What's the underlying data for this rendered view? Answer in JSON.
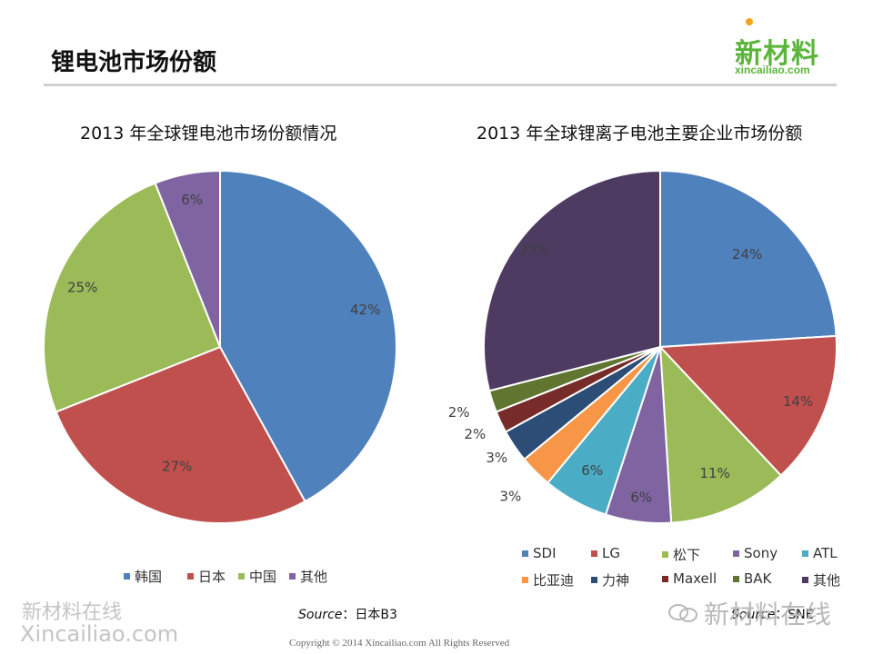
{
  "header": {
    "title": "锂电池市场份额",
    "logo_main": "新材料",
    "logo_sub": "xincailiao.com"
  },
  "chart_data": [
    {
      "type": "pie",
      "title": "2013 年全球锂电池市场份额情况",
      "categories": [
        "韩国",
        "日本",
        "中国",
        "其他"
      ],
      "values": [
        42,
        27,
        25,
        6
      ],
      "labels": [
        "42%",
        "27%",
        "25%",
        "6%"
      ],
      "colors": [
        "#4f81bd",
        "#c0504d",
        "#9bbb59",
        "#8064a2"
      ],
      "legend_position": "bottom"
    },
    {
      "type": "pie",
      "title": "2013 年全球锂离子电池主要企业市场份额",
      "categories": [
        "SDI",
        "LG",
        "松下",
        "Sony",
        "ATL",
        "比亚迪",
        "力神",
        "Maxell",
        "BAK",
        "其他"
      ],
      "values": [
        24,
        14,
        11,
        6,
        6,
        3,
        3,
        2,
        2,
        29
      ],
      "labels": [
        "24%",
        "14%",
        "11%",
        "6%",
        "6%",
        "3%",
        "3%",
        "2%",
        "2%",
        "29%"
      ],
      "colors": [
        "#4f81bd",
        "#c0504d",
        "#9bbb59",
        "#8064a2",
        "#4bacc6",
        "#f79646",
        "#2c4d75",
        "#772c2a",
        "#5f7530",
        "#4d3b62"
      ],
      "legend_position": "bottom"
    }
  ],
  "sources": {
    "left_label": "Source",
    "left_value": "：日本B3",
    "right_label": "Source",
    "right_value": "：SNE"
  },
  "footer": {
    "copyright": "Copyright © 2014   Xincailiao.com    All Rights Reserved",
    "watermark_left_line1": "新材料在线",
    "watermark_left_line2": "Xincailiao.com",
    "watermark_right": "新材料在线"
  }
}
